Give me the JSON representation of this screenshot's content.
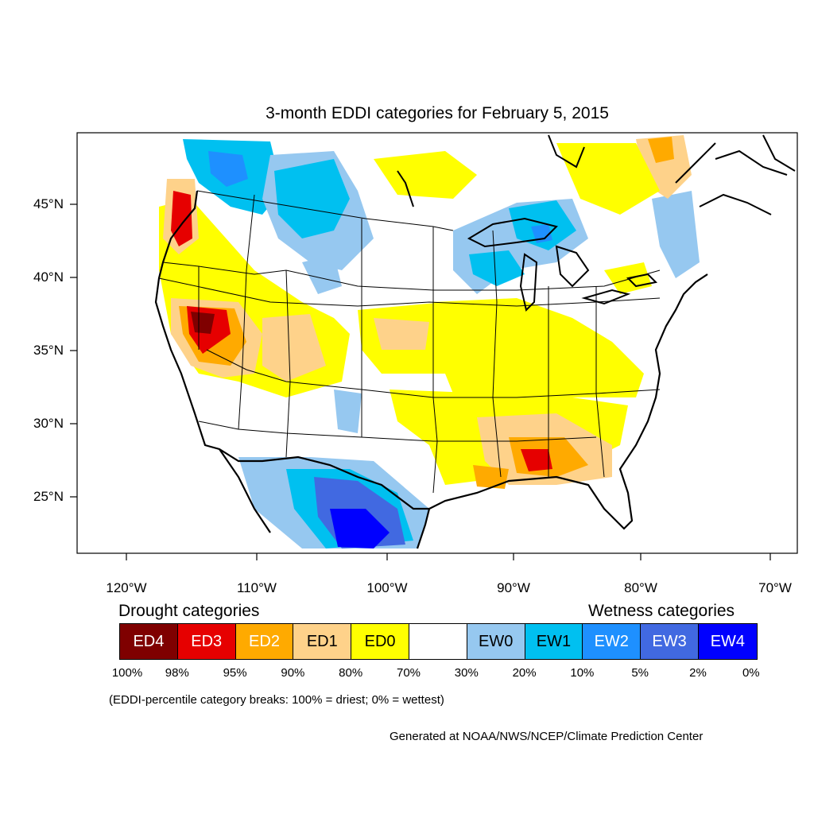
{
  "title": "3-month EDDI categories for February 5, 2015",
  "colors": {
    "ED4": "#7f0000",
    "ED3": "#e60000",
    "ED2": "#ffaa00",
    "ED1": "#fed28a",
    "ED0": "#ffff00",
    "none": "#ffffff",
    "EW0": "#96c8f0",
    "EW1": "#00c0f0",
    "EW2": "#1e90ff",
    "EW3": "#4169e1",
    "EW4": "#0000ff"
  },
  "axes": {
    "lon_ticks": [
      "120°W",
      "110°W",
      "100°W",
      "90°W",
      "80°W",
      "70°W"
    ],
    "lat_ticks": [
      "45°N",
      "40°N",
      "35°N",
      "30°N",
      "25°N"
    ]
  },
  "legend": {
    "drought_label": "Drought categories",
    "wetness_label": "Wetness categories",
    "categories": [
      {
        "label": "ED4",
        "color": "#7f0000",
        "text_color": "#ffffff"
      },
      {
        "label": "ED3",
        "color": "#e60000",
        "text_color": "#ffffff"
      },
      {
        "label": "ED2",
        "color": "#ffaa00",
        "text_color": "#ffffff"
      },
      {
        "label": "ED1",
        "color": "#fed28a",
        "text_color": "#000000"
      },
      {
        "label": "ED0",
        "color": "#ffff00",
        "text_color": "#000000"
      },
      {
        "label": "",
        "color": "#ffffff",
        "text_color": "#000000"
      },
      {
        "label": "EW0",
        "color": "#96c8f0",
        "text_color": "#000000"
      },
      {
        "label": "EW1",
        "color": "#00c0f0",
        "text_color": "#000000"
      },
      {
        "label": "EW2",
        "color": "#1e90ff",
        "text_color": "#ffffff"
      },
      {
        "label": "EW3",
        "color": "#4169e1",
        "text_color": "#ffffff"
      },
      {
        "label": "EW4",
        "color": "#0000ff",
        "text_color": "#ffffff"
      }
    ],
    "breaks": [
      "100%",
      "98%",
      "95%",
      "90%",
      "80%",
      "70%",
      "30%",
      "20%",
      "10%",
      "5%",
      "2%",
      "0%"
    ]
  },
  "note": "(EDDI-percentile category breaks: 100% = driest; 0% = wettest)",
  "credit": "Generated at NOAA/NWS/NCEP/Climate Prediction Center"
}
